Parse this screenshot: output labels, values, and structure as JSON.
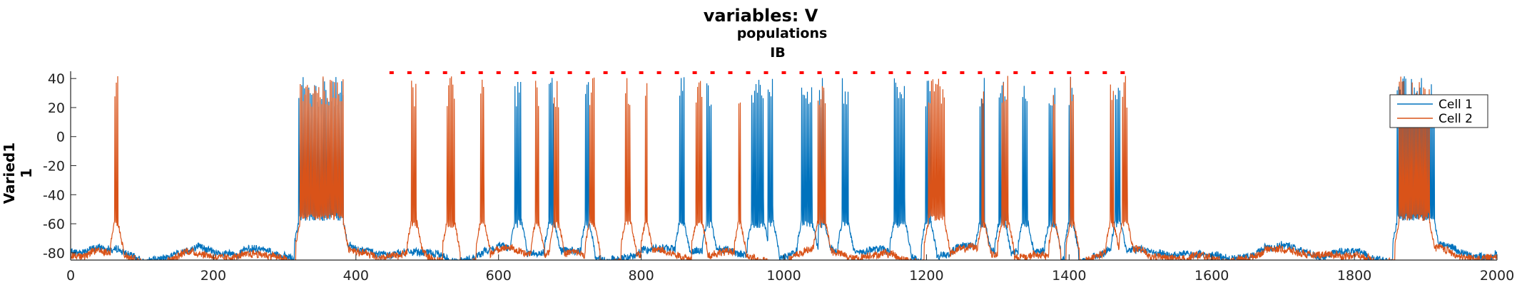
{
  "chart_data": {
    "type": "line",
    "title": "variables: V",
    "subtitle_1": "populations",
    "subtitle_2": "IB",
    "ylabel_line1": "Varied1",
    "ylabel_line2": "1",
    "xlabel": "",
    "xlim": [
      0,
      2000
    ],
    "ylim": [
      -85,
      45
    ],
    "x_ticks": [
      0,
      200,
      400,
      600,
      800,
      1000,
      1200,
      1400,
      1600,
      1800,
      2000
    ],
    "y_ticks": [
      40,
      20,
      0,
      -20,
      -40,
      -60,
      -80
    ],
    "legend_position": "top-right",
    "grid": false,
    "series": [
      {
        "name": "Cell 1",
        "color": "#0072BD",
        "baseline": -80,
        "bursts": [
          [
            320,
            382
          ],
          [
            623,
            632
          ],
          [
            671,
            678
          ],
          [
            722,
            727
          ],
          [
            854,
            860
          ],
          [
            892,
            898
          ],
          [
            955,
            972
          ],
          [
            978,
            985
          ],
          [
            1025,
            1040
          ],
          [
            1050,
            1057
          ],
          [
            1082,
            1090
          ],
          [
            1155,
            1170
          ],
          [
            1199,
            1206
          ],
          [
            1275,
            1282
          ],
          [
            1302,
            1310
          ],
          [
            1335,
            1342
          ],
          [
            1372,
            1380
          ],
          [
            1400,
            1405
          ],
          [
            1465,
            1472
          ],
          [
            1860,
            1912
          ]
        ]
      },
      {
        "name": "Cell 2",
        "color": "#D95319",
        "baseline": -82,
        "bursts": [
          [
            62,
            66
          ],
          [
            322,
            382
          ],
          [
            478,
            485
          ],
          [
            528,
            538
          ],
          [
            575,
            580
          ],
          [
            652,
            656
          ],
          [
            678,
            684
          ],
          [
            728,
            734
          ],
          [
            778,
            785
          ],
          [
            806,
            808
          ],
          [
            877,
            885
          ],
          [
            937,
            939
          ],
          [
            1048,
            1058
          ],
          [
            1203,
            1225
          ],
          [
            1278,
            1281
          ],
          [
            1306,
            1315
          ],
          [
            1378,
            1380
          ],
          [
            1402,
            1406
          ],
          [
            1458,
            1462
          ],
          [
            1475,
            1482
          ],
          [
            1863,
            1905
          ]
        ]
      }
    ],
    "markers": {
      "color": "#FF0000",
      "y": 44,
      "x": [
        450,
        475,
        500,
        525,
        550,
        575,
        600,
        625,
        650,
        675,
        700,
        725,
        750,
        775,
        800,
        825,
        850,
        875,
        900,
        925,
        950,
        975,
        1000,
        1025,
        1050,
        1075,
        1100,
        1125,
        1150,
        1175,
        1200,
        1225,
        1250,
        1275,
        1300,
        1325,
        1350,
        1375,
        1400,
        1425,
        1450,
        1475
      ]
    }
  }
}
